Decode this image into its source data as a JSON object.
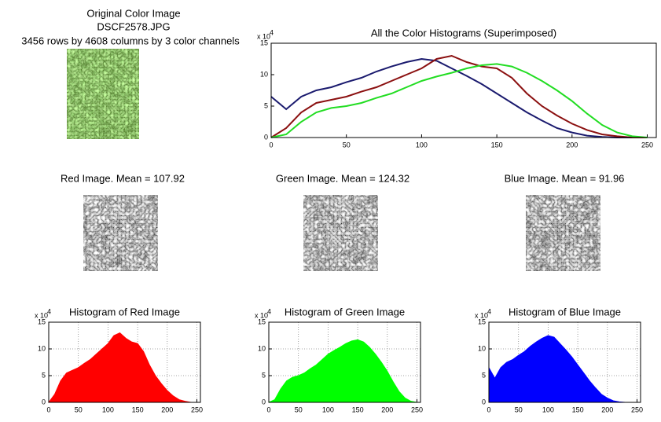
{
  "images": [
    {
      "title": [
        "Original Color Image",
        "DSCF2578.JPG",
        "3456 rows by 4608 columns by 3 color channels"
      ]
    },
    {
      "title": [
        "Red Image.  Mean = 107.92"
      ]
    },
    {
      "title": [
        "Green Image.  Mean = 124.32"
      ]
    },
    {
      "title": [
        "Blue Image.  Mean =  91.96"
      ]
    }
  ],
  "chart_data": [
    {
      "type": "line",
      "title": "All the Color Histograms (Superimposed)",
      "y_exponent_base": "x 10",
      "y_exponent": "4",
      "x": [
        0,
        10,
        20,
        30,
        40,
        50,
        60,
        70,
        80,
        90,
        100,
        110,
        120,
        130,
        140,
        150,
        160,
        170,
        180,
        190,
        200,
        210,
        220,
        230,
        240,
        250
      ],
      "series": [
        {
          "color": "#1a1a6e",
          "values": [
            6.5,
            4.5,
            6.5,
            7.5,
            8,
            8.8,
            9.5,
            10.5,
            11.3,
            12,
            12.5,
            12.2,
            11,
            9.8,
            8.5,
            7,
            5.5,
            4,
            2.7,
            1.5,
            0.8,
            0.3,
            0.1,
            0,
            0,
            0
          ]
        },
        {
          "color": "#8b1010",
          "values": [
            0,
            1.5,
            4,
            5.5,
            6,
            6.5,
            7.3,
            8,
            9,
            10,
            11,
            12.5,
            13,
            12,
            11.3,
            11,
            9.5,
            7,
            5,
            3.5,
            2.2,
            1.2,
            0.5,
            0.2,
            0,
            0
          ]
        },
        {
          "color": "#22dd22",
          "values": [
            0,
            0.5,
            2.5,
            4,
            4.7,
            5,
            5.5,
            6.3,
            7,
            8,
            9,
            9.7,
            10.3,
            11,
            11.5,
            11.7,
            11.3,
            10.3,
            9,
            7.5,
            5.8,
            3.8,
            2,
            0.8,
            0.2,
            0
          ]
        }
      ],
      "xlim": [
        0,
        256
      ],
      "xticks": [
        0,
        50,
        100,
        150,
        200,
        250
      ],
      "ylim": [
        0,
        15
      ],
      "yticks": [
        0,
        5,
        10,
        15
      ],
      "grid": false
    },
    {
      "type": "area",
      "title": "Histogram of Red Image",
      "y_exponent_base": "x 10",
      "y_exponent": "4",
      "x": [
        0,
        10,
        20,
        30,
        40,
        50,
        60,
        70,
        80,
        90,
        100,
        110,
        120,
        130,
        140,
        150,
        160,
        170,
        180,
        190,
        200,
        210,
        220,
        230,
        240,
        250
      ],
      "color": "#ff0000",
      "values": [
        0,
        1.5,
        4,
        5.5,
        6,
        6.5,
        7.3,
        8,
        9,
        10,
        11,
        12.5,
        13,
        12,
        11.3,
        11,
        9.5,
        7,
        5,
        3.5,
        2.2,
        1.2,
        0.5,
        0.2,
        0,
        0
      ],
      "xlim": [
        0,
        256
      ],
      "xticks": [
        0,
        50,
        100,
        150,
        200,
        250
      ],
      "ylim": [
        0,
        15
      ],
      "yticks": [
        0,
        5,
        10,
        15
      ],
      "grid": true
    },
    {
      "type": "area",
      "title": "Histogram of Green Image",
      "y_exponent_base": "x 10",
      "y_exponent": "4",
      "x": [
        0,
        10,
        20,
        30,
        40,
        50,
        60,
        70,
        80,
        90,
        100,
        110,
        120,
        130,
        140,
        150,
        160,
        170,
        180,
        190,
        200,
        210,
        220,
        230,
        240,
        250
      ],
      "color": "#00ff00",
      "values": [
        0,
        0.5,
        2.5,
        4,
        4.7,
        5,
        5.5,
        6.3,
        7,
        8,
        9,
        9.7,
        10.3,
        11,
        11.5,
        11.7,
        11.3,
        10.3,
        9,
        7.5,
        5.8,
        3.8,
        2,
        0.8,
        0.2,
        0
      ],
      "xlim": [
        0,
        256
      ],
      "xticks": [
        0,
        50,
        100,
        150,
        200,
        250
      ],
      "ylim": [
        0,
        15
      ],
      "yticks": [
        0,
        5,
        10,
        15
      ],
      "grid": true
    },
    {
      "type": "area",
      "title": "Histogram of Blue Image",
      "y_exponent_base": "x 10",
      "y_exponent": "4",
      "x": [
        0,
        10,
        20,
        30,
        40,
        50,
        60,
        70,
        80,
        90,
        100,
        110,
        120,
        130,
        140,
        150,
        160,
        170,
        180,
        190,
        200,
        210,
        220,
        230,
        240,
        250
      ],
      "color": "#0000ff",
      "values": [
        6.5,
        4.5,
        6.5,
        7.5,
        8,
        8.8,
        9.5,
        10.5,
        11.3,
        12,
        12.5,
        12.2,
        11,
        9.8,
        8.5,
        7,
        5.5,
        4,
        2.7,
        1.5,
        0.8,
        0.3,
        0.1,
        0,
        0,
        0
      ],
      "xlim": [
        0,
        256
      ],
      "xticks": [
        0,
        50,
        100,
        150,
        200,
        250
      ],
      "ylim": [
        0,
        15
      ],
      "yticks": [
        0,
        5,
        10,
        15
      ],
      "grid": true
    }
  ]
}
